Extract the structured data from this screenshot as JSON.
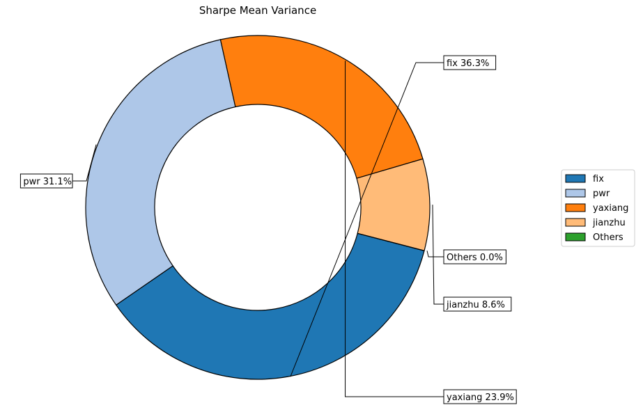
{
  "chart_data": {
    "type": "pie",
    "style": "donut",
    "title": "Sharpe Mean Variance",
    "slices": [
      {
        "label": "fix",
        "value": 36.3,
        "pct_text": "36.3%",
        "color": "#1f77b4"
      },
      {
        "label": "pwr",
        "value": 31.1,
        "pct_text": "31.1%",
        "color": "#aec7e8"
      },
      {
        "label": "yaxiang",
        "value": 23.9,
        "pct_text": "23.9%",
        "color": "#ff7f0e"
      },
      {
        "label": "jianzhu",
        "value": 8.6,
        "pct_text": "8.6%",
        "color": "#ffbb78"
      },
      {
        "label": "Others",
        "value": 0.0,
        "pct_text": "0.0%",
        "color": "#2ca02c"
      }
    ],
    "legend": {
      "placement": "right",
      "entries": [
        "fix",
        "pwr",
        "yaxiang",
        "jianzhu",
        "Others"
      ]
    },
    "direction": "clockwise",
    "start": "bottom-right"
  }
}
